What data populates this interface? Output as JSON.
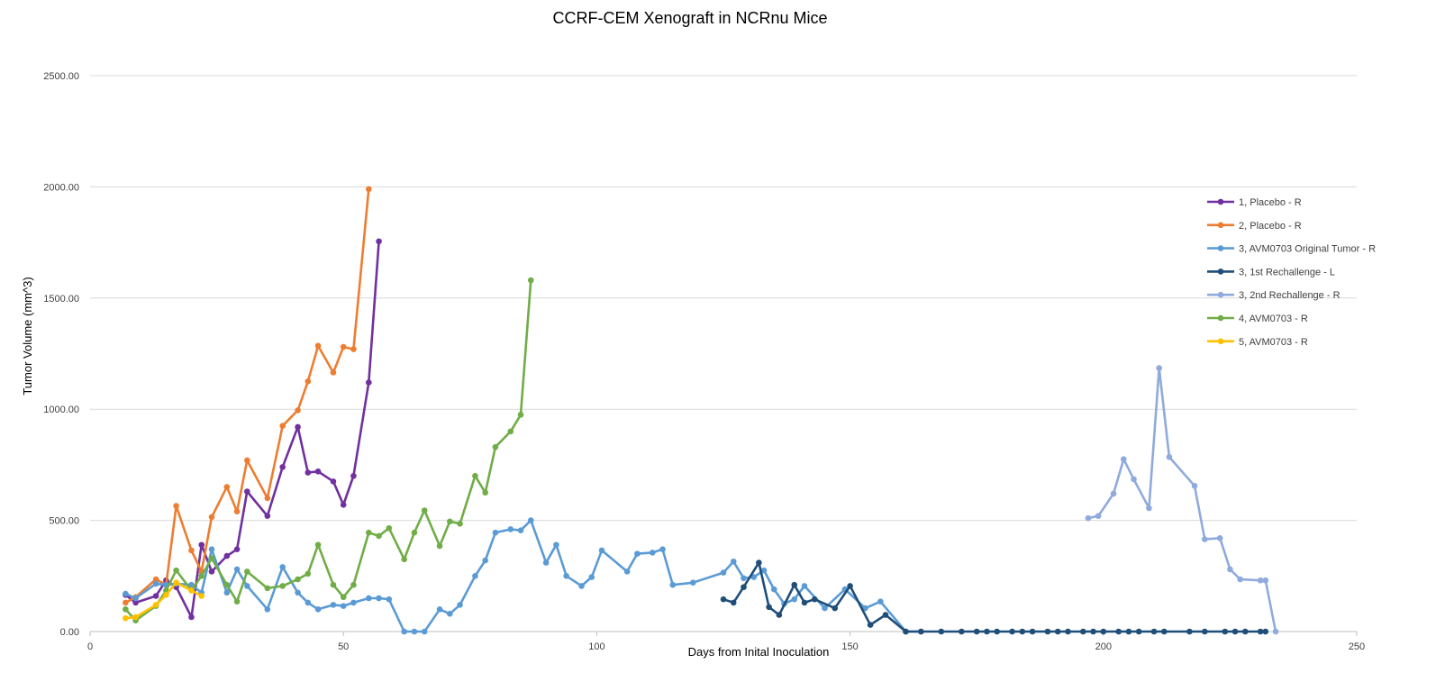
{
  "chart_data": {
    "type": "line",
    "title": "CCRF-CEM Xenograft in NCRnu Mice",
    "xlabel": "Days from Inital Inoculation",
    "ylabel": "Tumor Volume (mm^3)",
    "xlim": [
      0,
      250
    ],
    "ylim": [
      0,
      2500
    ],
    "x_ticks": [
      0,
      50,
      100,
      150,
      200,
      250
    ],
    "y_ticks": [
      0,
      500,
      1000,
      1500,
      2000,
      2500
    ],
    "x_tick_labels": [
      "0",
      "50",
      "100",
      "150",
      "200",
      "250"
    ],
    "y_tick_labels": [
      "0.00",
      "500.00",
      "1000.00",
      "1500.00",
      "2000.00",
      "2500.00"
    ],
    "grid": "horizontal",
    "legend_position": "right",
    "series": [
      {
        "name": "1, Placebo - R",
        "color": "#7030a0",
        "points": [
          [
            7,
            165
          ],
          [
            9,
            130
          ],
          [
            13,
            160
          ],
          [
            15,
            230
          ],
          [
            17,
            200
          ],
          [
            20,
            65
          ],
          [
            22,
            390
          ],
          [
            24,
            270
          ],
          [
            27,
            340
          ],
          [
            29,
            370
          ],
          [
            31,
            630
          ],
          [
            35,
            520
          ],
          [
            38,
            740
          ],
          [
            41,
            920
          ],
          [
            43,
            715
          ],
          [
            45,
            720
          ],
          [
            48,
            675
          ],
          [
            50,
            570
          ],
          [
            52,
            700
          ],
          [
            55,
            1120
          ],
          [
            57,
            1755
          ]
        ]
      },
      {
        "name": "2, Placebo - R",
        "color": "#ed7d31",
        "points": [
          [
            7,
            130
          ],
          [
            9,
            155
          ],
          [
            13,
            235
          ],
          [
            15,
            210
          ],
          [
            17,
            565
          ],
          [
            20,
            365
          ],
          [
            22,
            270
          ],
          [
            24,
            515
          ],
          [
            27,
            650
          ],
          [
            29,
            540
          ],
          [
            31,
            770
          ],
          [
            35,
            600
          ],
          [
            38,
            925
          ],
          [
            41,
            995
          ],
          [
            43,
            1125
          ],
          [
            45,
            1285
          ],
          [
            48,
            1165
          ],
          [
            50,
            1280
          ],
          [
            52,
            1270
          ],
          [
            55,
            1990
          ]
        ]
      },
      {
        "name": "3, AVM0703 Original Tumor - R",
        "color": "#5b9bd5",
        "points": [
          [
            7,
            170
          ],
          [
            9,
            150
          ],
          [
            13,
            215
          ],
          [
            15,
            210
          ],
          [
            17,
            215
          ],
          [
            20,
            210
          ],
          [
            22,
            175
          ],
          [
            24,
            370
          ],
          [
            27,
            175
          ],
          [
            29,
            280
          ],
          [
            31,
            205
          ],
          [
            35,
            100
          ],
          [
            38,
            290
          ],
          [
            41,
            175
          ],
          [
            43,
            130
          ],
          [
            45,
            100
          ],
          [
            48,
            120
          ],
          [
            50,
            115
          ],
          [
            52,
            130
          ],
          [
            55,
            150
          ],
          [
            57,
            150
          ],
          [
            59,
            145
          ],
          [
            62,
            0
          ],
          [
            64,
            0
          ],
          [
            66,
            0
          ],
          [
            69,
            100
          ],
          [
            71,
            80
          ],
          [
            73,
            120
          ],
          [
            76,
            250
          ],
          [
            78,
            320
          ],
          [
            80,
            445
          ],
          [
            83,
            460
          ],
          [
            85,
            455
          ],
          [
            87,
            500
          ],
          [
            90,
            310
          ],
          [
            92,
            390
          ],
          [
            94,
            250
          ],
          [
            97,
            205
          ],
          [
            99,
            245
          ],
          [
            101,
            365
          ],
          [
            106,
            270
          ],
          [
            108,
            350
          ],
          [
            111,
            355
          ],
          [
            113,
            370
          ],
          [
            115,
            210
          ],
          [
            119,
            220
          ],
          [
            125,
            265
          ],
          [
            127,
            315
          ],
          [
            129,
            240
          ],
          [
            131,
            245
          ],
          [
            133,
            275
          ],
          [
            135,
            190
          ],
          [
            137,
            125
          ],
          [
            139,
            145
          ],
          [
            141,
            205
          ],
          [
            145,
            105
          ],
          [
            149,
            190
          ],
          [
            153,
            105
          ],
          [
            156,
            135
          ],
          [
            161,
            0
          ],
          [
            164,
            0
          ]
        ]
      },
      {
        "name": "3, 1st Rechallenge - L",
        "color": "#1f4e79",
        "points": [
          [
            125,
            145
          ],
          [
            127,
            130
          ],
          [
            129,
            200
          ],
          [
            132,
            310
          ],
          [
            134,
            110
          ],
          [
            136,
            75
          ],
          [
            139,
            210
          ],
          [
            141,
            130
          ],
          [
            143,
            145
          ],
          [
            147,
            105
          ],
          [
            150,
            205
          ],
          [
            154,
            30
          ],
          [
            157,
            75
          ],
          [
            161,
            0
          ],
          [
            164,
            0
          ],
          [
            168,
            0
          ],
          [
            172,
            0
          ],
          [
            175,
            0
          ],
          [
            177,
            0
          ],
          [
            179,
            0
          ],
          [
            182,
            0
          ],
          [
            184,
            0
          ],
          [
            186,
            0
          ],
          [
            189,
            0
          ],
          [
            191,
            0
          ],
          [
            193,
            0
          ],
          [
            196,
            0
          ],
          [
            198,
            0
          ],
          [
            200,
            0
          ],
          [
            203,
            0
          ],
          [
            205,
            0
          ],
          [
            207,
            0
          ],
          [
            210,
            0
          ],
          [
            212,
            0
          ],
          [
            217,
            0
          ],
          [
            220,
            0
          ],
          [
            224,
            0
          ],
          [
            226,
            0
          ],
          [
            228,
            0
          ],
          [
            231,
            0
          ],
          [
            232,
            0
          ]
        ]
      },
      {
        "name": "3, 2nd Rechallenge - R",
        "color": "#8faadc",
        "points": [
          [
            197,
            510
          ],
          [
            199,
            520
          ],
          [
            202,
            620
          ],
          [
            204,
            775
          ],
          [
            206,
            685
          ],
          [
            209,
            555
          ],
          [
            211,
            1185
          ],
          [
            213,
            785
          ],
          [
            218,
            655
          ],
          [
            220,
            415
          ],
          [
            223,
            420
          ],
          [
            225,
            280
          ],
          [
            227,
            235
          ],
          [
            231,
            230
          ],
          [
            232,
            230
          ],
          [
            234,
            0
          ]
        ]
      },
      {
        "name": "4, AVM0703 - R",
        "color": "#70ad47",
        "points": [
          [
            7,
            100
          ],
          [
            9,
            50
          ],
          [
            13,
            115
          ],
          [
            15,
            185
          ],
          [
            17,
            275
          ],
          [
            20,
            185
          ],
          [
            22,
            250
          ],
          [
            24,
            330
          ],
          [
            27,
            210
          ],
          [
            29,
            135
          ],
          [
            31,
            270
          ],
          [
            35,
            195
          ],
          [
            38,
            205
          ],
          [
            41,
            235
          ],
          [
            43,
            260
          ],
          [
            45,
            390
          ],
          [
            48,
            210
          ],
          [
            50,
            155
          ],
          [
            52,
            210
          ],
          [
            55,
            445
          ],
          [
            57,
            430
          ],
          [
            59,
            465
          ],
          [
            62,
            325
          ],
          [
            64,
            445
          ],
          [
            66,
            545
          ],
          [
            69,
            385
          ],
          [
            71,
            495
          ],
          [
            73,
            485
          ],
          [
            76,
            700
          ],
          [
            78,
            625
          ],
          [
            80,
            830
          ],
          [
            83,
            900
          ],
          [
            85,
            975
          ],
          [
            87,
            1580
          ]
        ]
      },
      {
        "name": "5, AVM0703 - R",
        "color": "#ffc000",
        "points": [
          [
            7,
            60
          ],
          [
            9,
            65
          ],
          [
            13,
            120
          ],
          [
            15,
            165
          ],
          [
            17,
            220
          ],
          [
            20,
            185
          ],
          [
            22,
            160
          ]
        ]
      }
    ]
  }
}
